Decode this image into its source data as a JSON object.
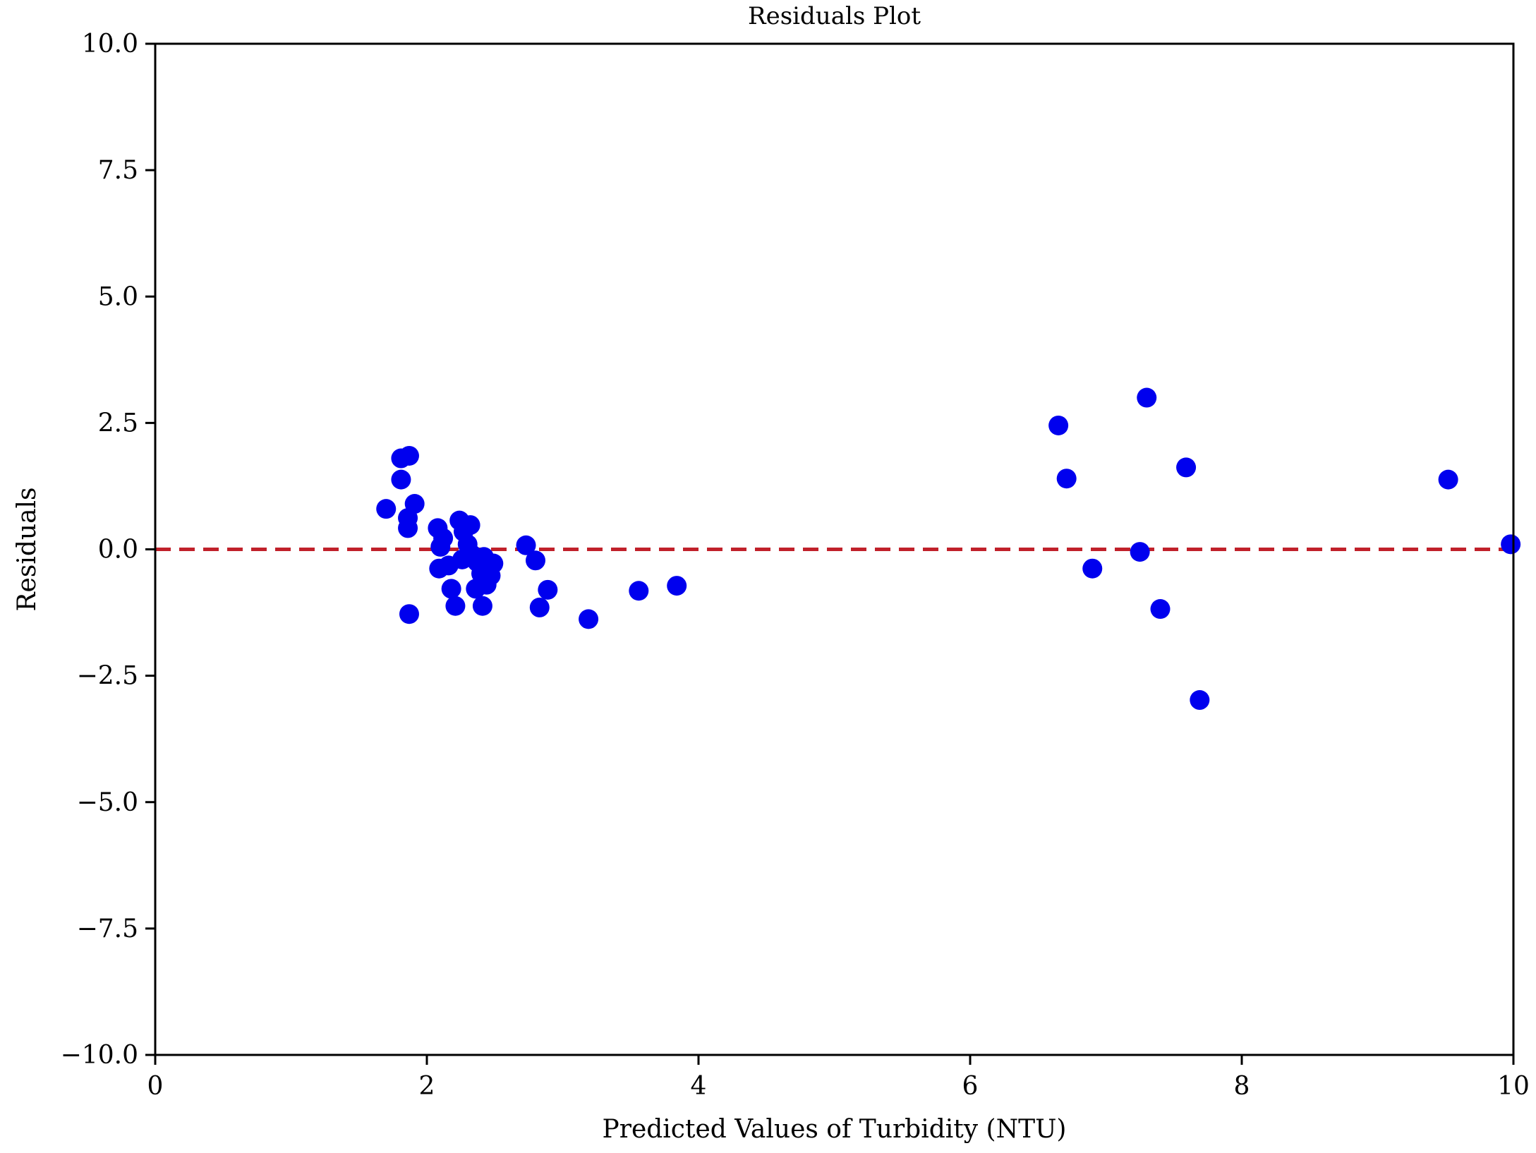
{
  "chart_data": {
    "type": "scatter",
    "title": "Residuals Plot",
    "xlabel": "Predicted Values of Turbidity (NTU)",
    "ylabel": "Residuals",
    "xlim": [
      0,
      10
    ],
    "ylim": [
      -10,
      10
    ],
    "xticks": [
      0,
      2,
      4,
      6,
      8,
      10
    ],
    "xtick_labels": [
      "0",
      "2",
      "4",
      "6",
      "8",
      "10"
    ],
    "yticks": [
      10,
      7.5,
      5,
      2.5,
      0,
      -2.5,
      -5,
      -7.5,
      -10
    ],
    "ytick_labels": [
      "10.0",
      "7.5",
      "5.0",
      "2.5",
      "0.0",
      "−2.5",
      "−5.0",
      "−7.5",
      "−10.0"
    ],
    "grid": false,
    "legend": "none",
    "point_color": "#0000ee",
    "reference_line": {
      "y": 0,
      "color": "#c0202a",
      "style": "dashed"
    },
    "series": [
      {
        "points": [
          [
            1.7,
            0.8
          ],
          [
            1.81,
            1.8
          ],
          [
            1.87,
            1.85
          ],
          [
            1.81,
            1.38
          ],
          [
            1.91,
            0.9
          ],
          [
            1.86,
            0.62
          ],
          [
            1.86,
            0.42
          ],
          [
            1.87,
            -1.28
          ],
          [
            2.08,
            0.42
          ],
          [
            2.12,
            0.22
          ],
          [
            2.1,
            0.05
          ],
          [
            2.09,
            -0.38
          ],
          [
            2.16,
            -0.32
          ],
          [
            2.18,
            -0.78
          ],
          [
            2.21,
            -1.12
          ],
          [
            2.24,
            0.57
          ],
          [
            2.27,
            0.35
          ],
          [
            2.3,
            0.1
          ],
          [
            2.32,
            0.48
          ],
          [
            2.26,
            -0.2
          ],
          [
            2.33,
            -0.1
          ],
          [
            2.37,
            -0.25
          ],
          [
            2.4,
            -0.48
          ],
          [
            2.42,
            -0.15
          ],
          [
            2.36,
            -0.78
          ],
          [
            2.44,
            -0.7
          ],
          [
            2.41,
            -1.12
          ],
          [
            2.47,
            -0.52
          ],
          [
            2.49,
            -0.28
          ],
          [
            2.73,
            0.08
          ],
          [
            2.8,
            -0.22
          ],
          [
            2.83,
            -1.15
          ],
          [
            2.89,
            -0.8
          ],
          [
            3.19,
            -1.38
          ],
          [
            3.56,
            -0.82
          ],
          [
            3.84,
            -0.72
          ],
          [
            6.65,
            2.45
          ],
          [
            6.71,
            1.4
          ],
          [
            6.9,
            -0.38
          ],
          [
            7.25,
            -0.05
          ],
          [
            7.3,
            3.0
          ],
          [
            7.4,
            -1.18
          ],
          [
            7.59,
            1.62
          ],
          [
            7.69,
            -2.98
          ],
          [
            9.52,
            1.38
          ],
          [
            9.98,
            0.1
          ]
        ]
      }
    ]
  }
}
